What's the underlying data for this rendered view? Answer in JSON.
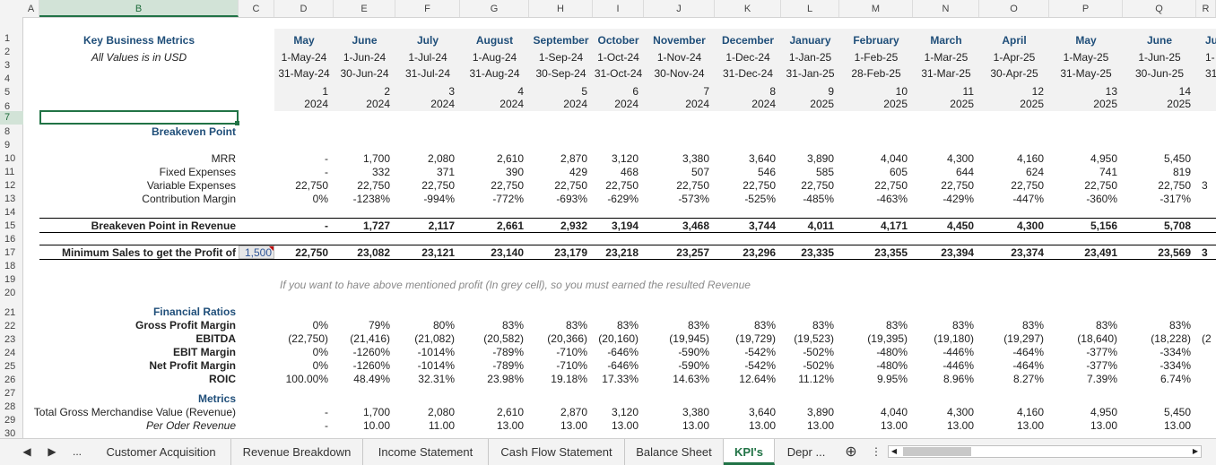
{
  "columns": [
    "A",
    "B",
    "C",
    "D",
    "E",
    "F",
    "G",
    "H",
    "I",
    "J",
    "K",
    "L",
    "M",
    "N",
    "O",
    "P",
    "Q",
    "R"
  ],
  "rows": [
    "1",
    "2",
    "3",
    "4",
    "5",
    "6",
    "7",
    "8",
    "9",
    "10",
    "11",
    "12",
    "13",
    "14",
    "15",
    "16",
    "17",
    "18",
    "19",
    "20",
    "21",
    "22",
    "23",
    "24",
    "25",
    "26",
    "27",
    "28",
    "29",
    "30"
  ],
  "header": {
    "title": "Key Business Metrics",
    "subtitle": "All Values is in USD",
    "months": [
      "May",
      "June",
      "July",
      "August",
      "September",
      "October",
      "November",
      "December",
      "January",
      "February",
      "March",
      "April",
      "May",
      "June",
      "Ju"
    ],
    "starts": [
      "1-May-24",
      "1-Jun-24",
      "1-Jul-24",
      "1-Aug-24",
      "1-Sep-24",
      "1-Oct-24",
      "1-Nov-24",
      "1-Dec-24",
      "1-Jan-25",
      "1-Feb-25",
      "1-Mar-25",
      "1-Apr-25",
      "1-May-25",
      "1-Jun-25",
      "1-"
    ],
    "ends": [
      "31-May-24",
      "30-Jun-24",
      "31-Jul-24",
      "31-Aug-24",
      "30-Sep-24",
      "31-Oct-24",
      "30-Nov-24",
      "31-Dec-24",
      "31-Jan-25",
      "28-Feb-25",
      "31-Mar-25",
      "30-Apr-25",
      "31-May-25",
      "30-Jun-25",
      "31-"
    ],
    "periods": [
      "1",
      "2",
      "3",
      "4",
      "5",
      "6",
      "7",
      "8",
      "9",
      "10",
      "11",
      "12",
      "13",
      "14"
    ],
    "years": [
      "2024",
      "2024",
      "2024",
      "2024",
      "2024",
      "2024",
      "2024",
      "2024",
      "2025",
      "2025",
      "2025",
      "2025",
      "2025",
      "2025"
    ]
  },
  "breakeven": {
    "section_title": "Breakeven Point",
    "labels": {
      "mrr": "MRR",
      "fixed": "Fixed Expenses",
      "variable": "Variable Expenses",
      "contribution": "Contribution Margin",
      "bep_revenue": "Breakeven Point in Revenue",
      "min_sales": "Minimum Sales to get the Profit of"
    },
    "mrr": [
      "-",
      "1,700",
      "2,080",
      "2,610",
      "2,870",
      "3,120",
      "3,380",
      "3,640",
      "3,890",
      "4,040",
      "4,300",
      "4,160",
      "4,950",
      "5,450"
    ],
    "fixed": [
      "-",
      "332",
      "371",
      "390",
      "429",
      "468",
      "507",
      "546",
      "585",
      "605",
      "644",
      "624",
      "741",
      "819"
    ],
    "variable": [
      "22,750",
      "22,750",
      "22,750",
      "22,750",
      "22,750",
      "22,750",
      "22,750",
      "22,750",
      "22,750",
      "22,750",
      "22,750",
      "22,750",
      "22,750",
      "22,750",
      "3"
    ],
    "contribution": [
      "0%",
      "-1238%",
      "-994%",
      "-772%",
      "-693%",
      "-629%",
      "-573%",
      "-525%",
      "-485%",
      "-463%",
      "-429%",
      "-447%",
      "-360%",
      "-317%"
    ],
    "bep_revenue": [
      "-",
      "1,727",
      "2,117",
      "2,661",
      "2,932",
      "3,194",
      "3,468",
      "3,744",
      "4,011",
      "4,171",
      "4,450",
      "4,300",
      "5,156",
      "5,708"
    ],
    "profit_input": "1,500",
    "min_sales": [
      "22,750",
      "23,082",
      "23,121",
      "23,140",
      "23,179",
      "23,218",
      "23,257",
      "23,296",
      "23,335",
      "23,355",
      "23,394",
      "23,374",
      "23,491",
      "23,569",
      "3"
    ],
    "note": "If you want to have above mentioned profit (In grey cell), so you must earned the resulted Revenue"
  },
  "ratios": {
    "section_title": "Financial Ratios",
    "labels": {
      "gpm": "Gross Profit Margin",
      "ebitda": "EBITDA",
      "ebit": "EBIT Margin",
      "npm": "Net Profit Margin",
      "roic": "ROIC"
    },
    "gpm": [
      "0%",
      "79%",
      "80%",
      "83%",
      "83%",
      "83%",
      "83%",
      "83%",
      "83%",
      "83%",
      "83%",
      "83%",
      "83%",
      "83%"
    ],
    "ebitda": [
      "(22,750)",
      "(21,416)",
      "(21,082)",
      "(20,582)",
      "(20,366)",
      "(20,160)",
      "(19,945)",
      "(19,729)",
      "(19,523)",
      "(19,395)",
      "(19,180)",
      "(19,297)",
      "(18,640)",
      "(18,228)",
      "(2"
    ],
    "ebit": [
      "0%",
      "-1260%",
      "-1014%",
      "-789%",
      "-710%",
      "-646%",
      "-590%",
      "-542%",
      "-502%",
      "-480%",
      "-446%",
      "-464%",
      "-377%",
      "-334%"
    ],
    "npm": [
      "0%",
      "-1260%",
      "-1014%",
      "-789%",
      "-710%",
      "-646%",
      "-590%",
      "-542%",
      "-502%",
      "-480%",
      "-446%",
      "-464%",
      "-377%",
      "-334%"
    ],
    "roic": [
      "100.00%",
      "48.49%",
      "32.31%",
      "23.98%",
      "19.18%",
      "17.33%",
      "14.63%",
      "12.64%",
      "11.12%",
      "9.95%",
      "8.96%",
      "8.27%",
      "7.39%",
      "6.74%"
    ]
  },
  "metrics": {
    "section_title": "Metrics",
    "labels": {
      "gmv": "Total Gross Merchandise Value (Revenue)",
      "per_order": "Per Oder Revenue"
    },
    "gmv": [
      "-",
      "1,700",
      "2,080",
      "2,610",
      "2,870",
      "3,120",
      "3,380",
      "3,640",
      "3,890",
      "4,040",
      "4,300",
      "4,160",
      "4,950",
      "5,450"
    ],
    "per_order": [
      "-",
      "10.00",
      "11.00",
      "13.00",
      "13.00",
      "13.00",
      "13.00",
      "13.00",
      "13.00",
      "13.00",
      "13.00",
      "13.00",
      "13.00",
      "13.00"
    ]
  },
  "tabs": {
    "more": "...",
    "items": [
      "Customer Acquisition",
      "Revenue Breakdown",
      "Income Statement",
      "Cash Flow Statement",
      "Balance Sheet",
      "KPI's",
      "Depr ..."
    ],
    "active": "KPI's",
    "add": "⊕",
    "menu": "⋮"
  },
  "colors": {
    "accent": "#217346",
    "section": "#1f4e79",
    "note": "#8a8a8a"
  }
}
